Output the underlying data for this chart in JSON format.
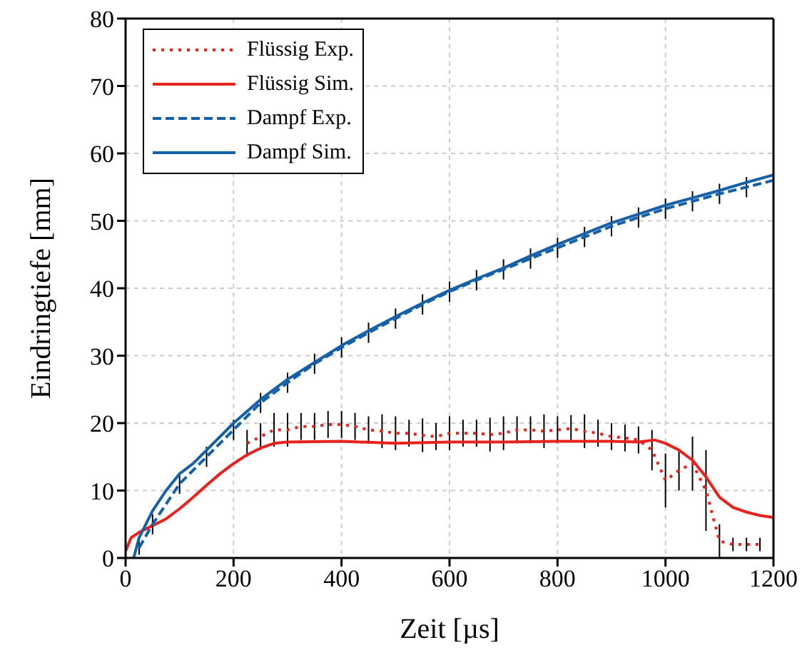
{
  "chart_data": {
    "type": "line",
    "xlabel": "Zeit [µs]",
    "ylabel": "Eindringtiefe [mm]",
    "xlim": [
      0,
      1200
    ],
    "xticks": [
      0,
      200,
      400,
      600,
      800,
      1000,
      1200
    ],
    "ylim": [
      0,
      80
    ],
    "yticks": [
      0,
      10,
      20,
      30,
      40,
      50,
      60,
      70,
      80
    ],
    "grid": true,
    "legend": "top left",
    "marker": "none",
    "series": [
      {
        "name": "Flüssig Exp.",
        "color": "#e8221c",
        "line_style": "dotted",
        "x": [
          225,
          250,
          275,
          300,
          325,
          350,
          375,
          400,
          425,
          450,
          475,
          500,
          525,
          550,
          575,
          600,
          625,
          650,
          675,
          700,
          725,
          750,
          775,
          800,
          825,
          850,
          875,
          900,
          925,
          950,
          975,
          1000,
          1025,
          1050,
          1075,
          1100,
          1125,
          1150,
          1175
        ],
        "values": [
          17,
          18,
          19,
          19,
          19.5,
          19.5,
          19.8,
          19.8,
          19.5,
          19,
          18.8,
          18.5,
          18.5,
          18.2,
          18,
          18.5,
          18.5,
          18.5,
          18.3,
          18.5,
          19,
          19,
          18.8,
          19,
          19.2,
          18.8,
          18.5,
          18,
          17.8,
          17.5,
          16,
          11.5,
          13,
          14,
          10,
          2.5,
          2,
          2,
          2
        ],
        "errors": [
          2,
          2,
          2.5,
          2.5,
          2,
          2,
          2,
          2,
          2,
          2,
          2.5,
          2.5,
          2,
          2.5,
          2,
          2.5,
          2,
          2,
          2.5,
          2.5,
          2,
          2,
          2.5,
          2,
          2,
          2.5,
          2,
          2,
          2,
          2,
          3,
          4,
          3,
          4,
          6,
          2.5,
          1,
          1,
          1
        ]
      },
      {
        "name": "Flüssig Sim.",
        "color": "#e8221c",
        "line_style": "solid",
        "x": [
          0,
          10,
          25,
          50,
          75,
          100,
          125,
          150,
          175,
          200,
          225,
          250,
          275,
          300,
          400,
          500,
          600,
          700,
          800,
          900,
          950,
          980,
          1000,
          1025,
          1050,
          1075,
          1100,
          1125,
          1150,
          1175,
          1200
        ],
        "values": [
          1,
          3,
          3.8,
          4.8,
          5.8,
          7.3,
          9,
          10.8,
          12.5,
          14,
          15.3,
          16.3,
          17,
          17.2,
          17.3,
          17,
          17.2,
          17.2,
          17.3,
          17.3,
          17.2,
          17.5,
          17,
          16,
          14.5,
          12,
          9,
          7.5,
          6.8,
          6.3,
          6
        ]
      },
      {
        "name": "Dampf Exp.",
        "color": "#1560a8",
        "line_style": "dashed",
        "x": [
          25,
          50,
          100,
          150,
          200,
          250,
          300,
          350,
          400,
          450,
          500,
          550,
          600,
          650,
          700,
          750,
          800,
          850,
          900,
          950,
          1000,
          1050,
          1100,
          1150,
          1200
        ],
        "values": [
          1.5,
          5,
          11,
          15,
          19,
          23,
          26,
          28.8,
          31.2,
          33.4,
          35.5,
          37.6,
          39.5,
          41.2,
          42.8,
          44.4,
          46,
          47.6,
          49.2,
          50.5,
          51.8,
          52.9,
          54,
          55,
          56
        ],
        "errors": [
          1,
          1.5,
          1.5,
          1.5,
          1.5,
          1.5,
          1.5,
          1.5,
          1.5,
          1.5,
          1.5,
          1.5,
          1.5,
          1.5,
          1.5,
          1.5,
          1.5,
          1.5,
          1.5,
          1.5,
          1.5,
          1.5,
          1.5,
          1.5,
          1.5
        ]
      },
      {
        "name": "Dampf Sim.",
        "color": "#1560a8",
        "line_style": "solid",
        "x": [
          15,
          25,
          50,
          75,
          100,
          125,
          150,
          200,
          250,
          300,
          350,
          400,
          450,
          500,
          550,
          600,
          650,
          700,
          750,
          800,
          850,
          900,
          950,
          1000,
          1050,
          1100,
          1150,
          1200
        ],
        "values": [
          0,
          3,
          7,
          10,
          12.5,
          14,
          16,
          20,
          23.5,
          26.5,
          29,
          31.5,
          33.7,
          35.8,
          37.8,
          39.7,
          41.4,
          43,
          44.8,
          46.5,
          48.1,
          49.7,
          51,
          52.3,
          53.4,
          54.5,
          55.7,
          56.8
        ]
      }
    ]
  }
}
